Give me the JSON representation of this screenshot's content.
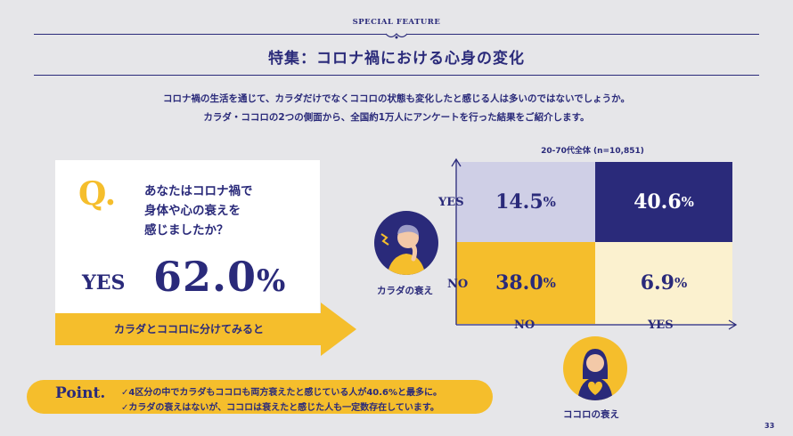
{
  "header": {
    "kicker": "SPECIAL FEATURE",
    "title": "特集：コロナ禍における心身の変化"
  },
  "intro": {
    "line1": "コロナ禍の生活を通じて、カラダだけでなくココロの状態も変化したと感じる人は多いのではないでしょうか。",
    "line2": "カラダ・ココロの2つの側面から、全国約1万人にアンケートを行った結果をご紹介します。"
  },
  "question": {
    "mark": "Q.",
    "lines": [
      "あなたはコロナ禍で",
      "身体や心の衰えを",
      "感じましたか？"
    ],
    "answer_label": "YES",
    "answer_number": "62.0",
    "answer_unit": "%"
  },
  "banner": {
    "text": "カラダとココロに分けてみると"
  },
  "chart_data": {
    "type": "table",
    "subtitle": "20-70代全体 (n=10,851)",
    "x_axis_label": "カラダの衰え",
    "y_axis_label": "ココロの衰え",
    "x_categories": [
      "NO",
      "YES"
    ],
    "y_categories": [
      "YES",
      "NO"
    ],
    "cells": [
      {
        "kokoro": "YES",
        "karada": "NO",
        "number": "14.5",
        "unit": "%",
        "value": 14.5
      },
      {
        "kokoro": "YES",
        "karada": "YES",
        "number": "40.6",
        "unit": "%",
        "value": 40.6
      },
      {
        "kokoro": "NO",
        "karada": "NO",
        "number": "38.0",
        "unit": "%",
        "value": 38.0
      },
      {
        "kokoro": "NO",
        "karada": "YES",
        "number": "6.9",
        "unit": "%",
        "value": 6.9
      }
    ]
  },
  "avatars": {
    "karada_caption": "カラダの衰え",
    "kokoro_caption": "ココロの衰え"
  },
  "point": {
    "title": "Point.",
    "lines": [
      "✓4区分の中でカラダもココロも両方衰えたと感じている人が40.6%と最多に。",
      "✓カラダの衰えはないが、ココロは衰えたと感じた人も一定数存在しています。"
    ]
  },
  "page_number": "33",
  "colors": {
    "navy": "#2a2a7a",
    "yellow": "#f5be2c",
    "lavender": "#cfcfe6",
    "cream": "#fbf1cf",
    "background": "#e6e6e9"
  }
}
